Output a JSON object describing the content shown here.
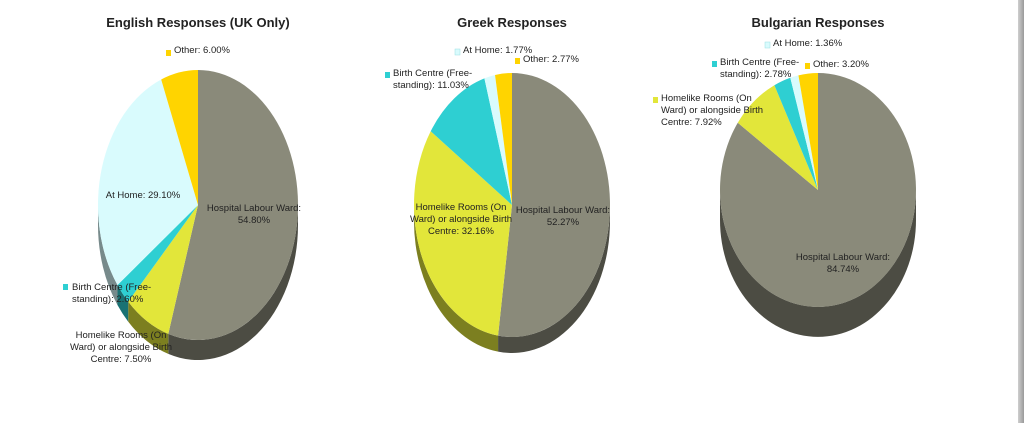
{
  "chart_data": [
    {
      "type": "pie",
      "title": "English Responses (UK Only)",
      "slices": [
        {
          "name": "Hospital Labour Ward",
          "value": 54.8,
          "label_lines": [
            "Hospital Labour Ward:",
            "54.80%"
          ],
          "color": "#8a8a7a"
        },
        {
          "name": "Homelike Rooms (On Ward) or alongside Birth Centre",
          "value": 7.5,
          "label_lines": [
            "Homelike Rooms (On",
            "Ward) or alongside Birth",
            "Centre: 7.50%"
          ],
          "color": "#e2e63a"
        },
        {
          "name": "Birth Centre (Free-standing)",
          "value": 2.6,
          "label_lines": [
            "Birth Centre (Free-",
            "standing): 2.60%"
          ],
          "color": "#2ecfd2"
        },
        {
          "name": "At Home",
          "value": 29.1,
          "label_lines": [
            "At Home: 29.10%"
          ],
          "color": "#d9fbfd"
        },
        {
          "name": "Other",
          "value": 6.0,
          "label_lines": [
            "Other: 6.00%"
          ],
          "color": "#ffd400"
        }
      ]
    },
    {
      "type": "pie",
      "title": "Greek Responses",
      "slices": [
        {
          "name": "Hospital Labour Ward",
          "value": 52.27,
          "label_lines": [
            "Hospital Labour Ward:",
            "52.27%"
          ],
          "color": "#8a8a7a"
        },
        {
          "name": "Homelike Rooms (On Ward) or alongside Birth Centre",
          "value": 32.16,
          "label_lines": [
            "Homelike Rooms (On",
            "Ward) or alongside Birth",
            "Centre: 32.16%"
          ],
          "color": "#e2e63a"
        },
        {
          "name": "Birth Centre (Free-standing)",
          "value": 11.03,
          "label_lines": [
            "Birth Centre (Free-",
            "standing): 11.03%"
          ],
          "color": "#2ecfd2"
        },
        {
          "name": "At Home",
          "value": 1.77,
          "label_lines": [
            "At Home: 1.77%"
          ],
          "color": "#d9fbfd"
        },
        {
          "name": "Other",
          "value": 2.77,
          "label_lines": [
            "Other: 2.77%"
          ],
          "color": "#ffd400"
        }
      ]
    },
    {
      "type": "pie",
      "title": "Bulgarian Responses",
      "slices": [
        {
          "name": "Hospital Labour Ward",
          "value": 84.74,
          "label_lines": [
            "Hospital Labour Ward:",
            "84.74%"
          ],
          "color": "#8a8a7a"
        },
        {
          "name": "Homelike Rooms (On Ward) or alongside Birth Centre",
          "value": 7.92,
          "label_lines": [
            "Homelike Rooms (On",
            "Ward) or alongside Birth",
            "Centre: 7.92%"
          ],
          "color": "#e2e63a"
        },
        {
          "name": "Birth Centre (Free-standing)",
          "value": 2.78,
          "label_lines": [
            "Birth Centre (Free-",
            "standing): 2.78%"
          ],
          "color": "#2ecfd2"
        },
        {
          "name": "At Home",
          "value": 1.36,
          "label_lines": [
            "At Home: 1.36%"
          ],
          "color": "#d9fbfd"
        },
        {
          "name": "Other",
          "value": 3.2,
          "label_lines": [
            "Other: 3.20%"
          ],
          "color": "#ffd400"
        }
      ]
    }
  ]
}
